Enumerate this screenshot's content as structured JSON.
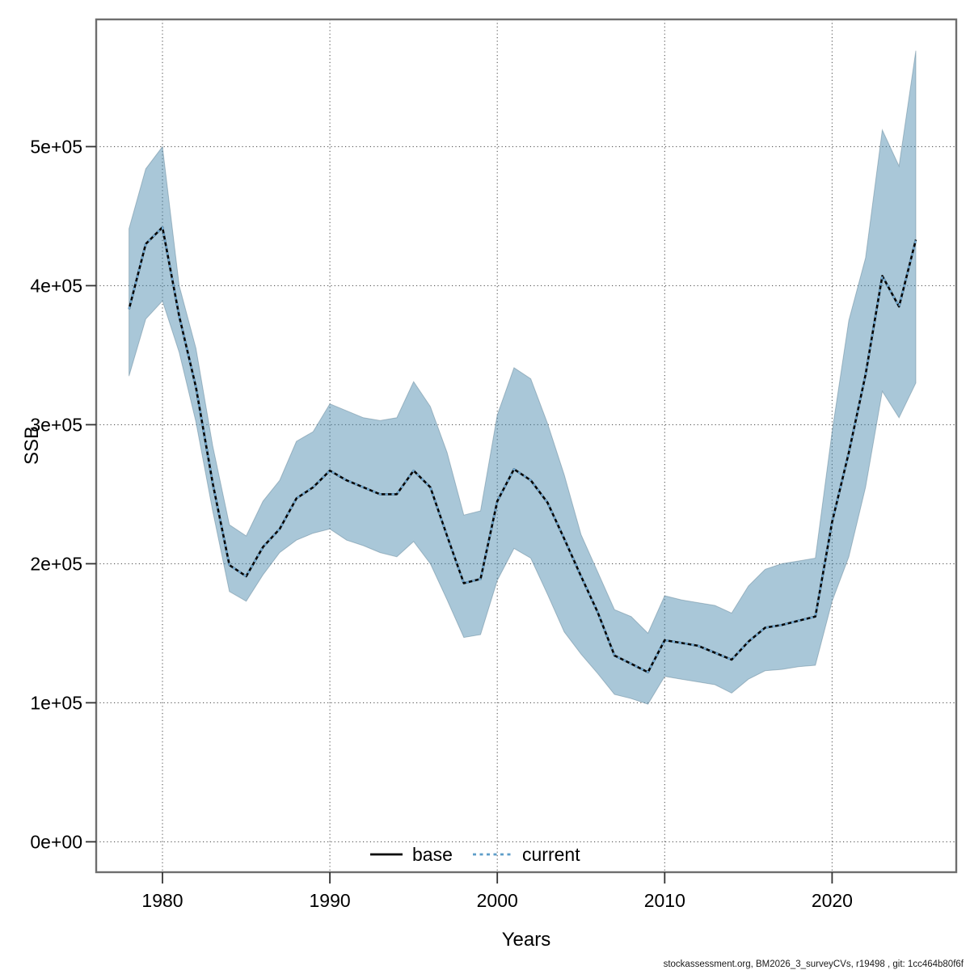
{
  "footer": {
    "text": "stockassessment.org, BM2026_3_surveyCVs, r19498 , git: 1cc464b80f6f"
  },
  "legend": {
    "base_label": "base",
    "current_label": "current"
  },
  "colors": {
    "ribbon_fill": "#4083a9",
    "ribbon_opacity": 0.45,
    "ribbon_edge": "#5c7f93",
    "base_line": "#050505",
    "current_line": "#72aad2",
    "grid": "#555555",
    "border": "#6e6e6e",
    "tick": "#333333"
  },
  "chart_data": {
    "type": "line",
    "title": "",
    "xlabel": "Years",
    "ylabel": "SSB",
    "xlim": [
      1976.0,
      2027.4
    ],
    "ylim": [
      -22000,
      591000
    ],
    "grid": true,
    "legend_position": "bottom-center-inside",
    "x_ticks": [
      1980,
      1990,
      2000,
      2010,
      2020
    ],
    "y_ticks": [
      {
        "v": 0,
        "label": "0e+00"
      },
      {
        "v": 100000,
        "label": "1e+05"
      },
      {
        "v": 200000,
        "label": "2e+05"
      },
      {
        "v": 300000,
        "label": "3e+05"
      },
      {
        "v": 400000,
        "label": "4e+05"
      },
      {
        "v": 500000,
        "label": "5e+05"
      }
    ],
    "x": [
      1978,
      1979,
      1980,
      1981,
      1982,
      1983,
      1984,
      1985,
      1986,
      1987,
      1988,
      1989,
      1990,
      1991,
      1992,
      1993,
      1994,
      1995,
      1996,
      1997,
      1998,
      1999,
      2000,
      2001,
      2002,
      2003,
      2004,
      2005,
      2006,
      2007,
      2008,
      2009,
      2010,
      2011,
      2012,
      2013,
      2014,
      2015,
      2016,
      2017,
      2018,
      2019,
      2020,
      2021,
      2022,
      2023,
      2024,
      2025
    ],
    "series": [
      {
        "name": "base",
        "style": "solid",
        "color": "#050505",
        "values": [
          383000,
          430000,
          442000,
          378000,
          327000,
          258000,
          199000,
          191000,
          212000,
          225000,
          247000,
          255000,
          267000,
          260000,
          255000,
          250000,
          250000,
          267000,
          255000,
          220000,
          186000,
          189000,
          245000,
          268000,
          260000,
          244000,
          218000,
          191000,
          165000,
          134000,
          128000,
          122000,
          145000,
          143000,
          141000,
          136000,
          131000,
          144000,
          154000,
          156000,
          159000,
          162000,
          230000,
          280000,
          336000,
          407000,
          385000,
          433000
        ]
      },
      {
        "name": "current",
        "style": "dotted",
        "color": "#72aad2",
        "values": [
          383000,
          430000,
          442000,
          378000,
          327000,
          258000,
          199000,
          191000,
          212000,
          225000,
          247000,
          255000,
          267000,
          260000,
          255000,
          250000,
          250000,
          267000,
          255000,
          220000,
          186000,
          189000,
          245000,
          268000,
          260000,
          244000,
          218000,
          191000,
          165000,
          134000,
          128000,
          122000,
          145000,
          143000,
          141000,
          136000,
          131000,
          144000,
          154000,
          156000,
          159000,
          162000,
          230000,
          280000,
          336000,
          407000,
          385000,
          433000
        ]
      }
    ],
    "band": {
      "applies_to": "current",
      "lower": [
        335000,
        376000,
        389000,
        352000,
        302000,
        238000,
        180000,
        173000,
        192000,
        208000,
        217000,
        222000,
        225000,
        217000,
        213000,
        208000,
        205000,
        216000,
        200000,
        174000,
        147000,
        149000,
        188000,
        211000,
        204000,
        178000,
        151000,
        135000,
        121000,
        106000,
        103000,
        99000,
        119000,
        117000,
        115000,
        113000,
        107000,
        117000,
        123000,
        124000,
        126000,
        127000,
        173000,
        205000,
        255000,
        324000,
        305000,
        330000
      ],
      "upper": [
        441000,
        484000,
        500000,
        400000,
        355000,
        285000,
        228000,
        220000,
        245000,
        260000,
        288000,
        295000,
        315000,
        310000,
        305000,
        303000,
        305000,
        331000,
        313000,
        280000,
        235000,
        238000,
        307000,
        341000,
        333000,
        301000,
        264000,
        221000,
        194000,
        167000,
        162000,
        150000,
        177000,
        174000,
        172000,
        170000,
        164500,
        184000,
        196000,
        200000,
        202000,
        204000,
        295000,
        375000,
        420000,
        512000,
        486000,
        569000
      ]
    }
  }
}
